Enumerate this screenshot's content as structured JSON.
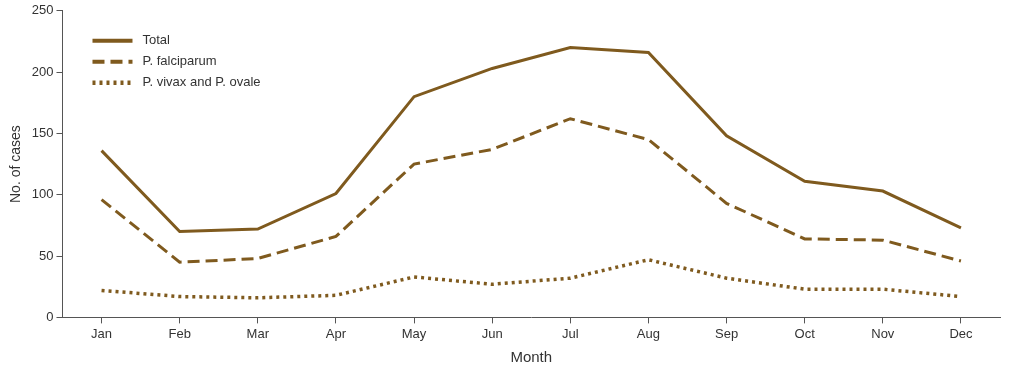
{
  "chart_data": {
    "type": "line",
    "x_label": "Month",
    "y_label": "No. of cases",
    "categories": [
      "Jan",
      "Feb",
      "Mar",
      "Apr",
      "May",
      "Jun",
      "Jul",
      "Aug",
      "Sep",
      "Oct",
      "Nov",
      "Dec"
    ],
    "series": [
      {
        "name": "Total",
        "color": "#7f5a1e",
        "line_style": "solid",
        "values": [
          136,
          70,
          72,
          101,
          180,
          203,
          220,
          216,
          148,
          111,
          103,
          73
        ]
      },
      {
        "name": "P. falciparum",
        "color": "#7f5a1e",
        "line_style": "dashed",
        "values": [
          96,
          45,
          48,
          66,
          125,
          137,
          162,
          145,
          93,
          64,
          63,
          46
        ]
      },
      {
        "name": "P. vivax and P. ovale",
        "color": "#7f5a1e",
        "line_style": "dotted",
        "values": [
          22,
          17,
          16,
          18,
          33,
          27,
          32,
          47,
          32,
          23,
          23,
          17
        ]
      }
    ],
    "ylim": [
      0,
      250
    ],
    "yticks": [
      0,
      50,
      100,
      150,
      200,
      250
    ],
    "grid": false,
    "legend": "upper left"
  }
}
